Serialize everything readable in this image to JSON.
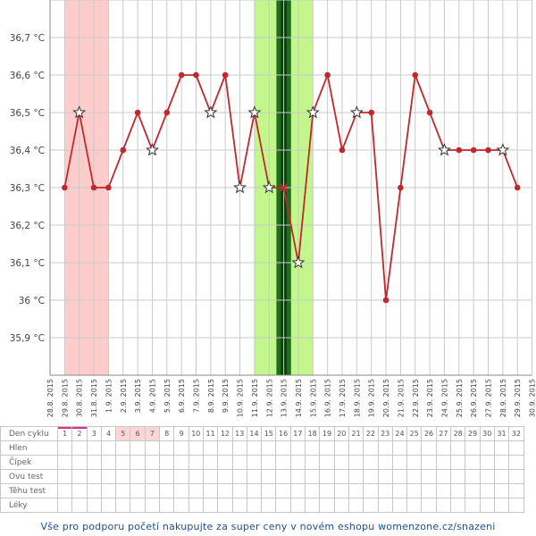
{
  "chart_data": {
    "type": "line",
    "y_unit_suffix": " °C",
    "ylim": [
      35.8,
      36.8
    ],
    "y_ticks": [
      "35,9",
      "36",
      "36,1",
      "36,2",
      "36,3",
      "36,4",
      "36,5",
      "36,6",
      "36,7"
    ],
    "x": [
      "28.8. 2015",
      "29.8. 2015",
      "30.8. 2015",
      "31.8. 2015",
      "1.9. 2015",
      "2.9. 2015",
      "3.9. 2015",
      "4.9. 2015",
      "5.9. 2015",
      "6.9. 2015",
      "7.9. 2015",
      "8.9. 2015",
      "9.9. 2015",
      "10.9. 2015",
      "11.9. 2015",
      "12.9. 2015",
      "13.9. 2015",
      "14.9. 2015",
      "15.9. 2015",
      "16.9. 2015",
      "17.9. 2015",
      "18.9. 2015",
      "19.9. 2015",
      "20.9. 2015",
      "21.9. 2015",
      "22.9. 2015",
      "23.9. 2015",
      "24.9. 2015",
      "25.9. 2015",
      "26.9. 2015",
      "27.9. 2015",
      "28.9. 2015",
      "29.9. 2015",
      "30.9. 2015"
    ],
    "series": [
      {
        "color": "#c0282d",
        "values": [
          null,
          36.3,
          36.5,
          36.3,
          36.3,
          36.4,
          36.5,
          36.4,
          36.5,
          36.6,
          36.6,
          36.5,
          36.6,
          36.3,
          36.5,
          36.3,
          36.3,
          36.1,
          36.5,
          36.6,
          36.4,
          36.5,
          36.5,
          36.0,
          36.3,
          36.6,
          36.5,
          36.4,
          36.4,
          36.4,
          36.4,
          36.4,
          36.3,
          null
        ],
        "star_markers": [
          2,
          11,
          14,
          15,
          17,
          18,
          21,
          27,
          31,
          7,
          13
        ],
        "cross_markers": [
          16
        ]
      }
    ],
    "bands": [
      {
        "name": "menstruation",
        "from_day": 1,
        "to_day": 4,
        "color": "#ffcccc"
      },
      {
        "name": "fertile",
        "from_day": 14,
        "to_day": 18,
        "color": "#c3f78c"
      },
      {
        "name": "ovulation",
        "from_day": 15.5,
        "to_day": 16.5,
        "color": "#1e6e1e",
        "center_color": "#0b3d0b"
      }
    ],
    "grid": true
  },
  "table": {
    "rows": [
      "Den cyklu",
      "Hlen",
      "Čípek",
      "Ovu test",
      "Těhu test",
      "Léky"
    ],
    "cycle_days": [
      "1",
      "2",
      "3",
      "4",
      "5",
      "6",
      "7",
      "8",
      "9",
      "10",
      "11",
      "12",
      "13",
      "14",
      "15",
      "16",
      "17",
      "18",
      "19",
      "20",
      "21",
      "22",
      "23",
      "24",
      "25",
      "26",
      "27",
      "28",
      "29",
      "30",
      "31",
      "32"
    ],
    "red_days": [
      5,
      6,
      7
    ],
    "marked_days": [
      1,
      2
    ]
  },
  "footer": {
    "text": "Vše pro podporu početí nakupujte za super ceny v novém eshopu womenzone.cz/snazeni"
  }
}
